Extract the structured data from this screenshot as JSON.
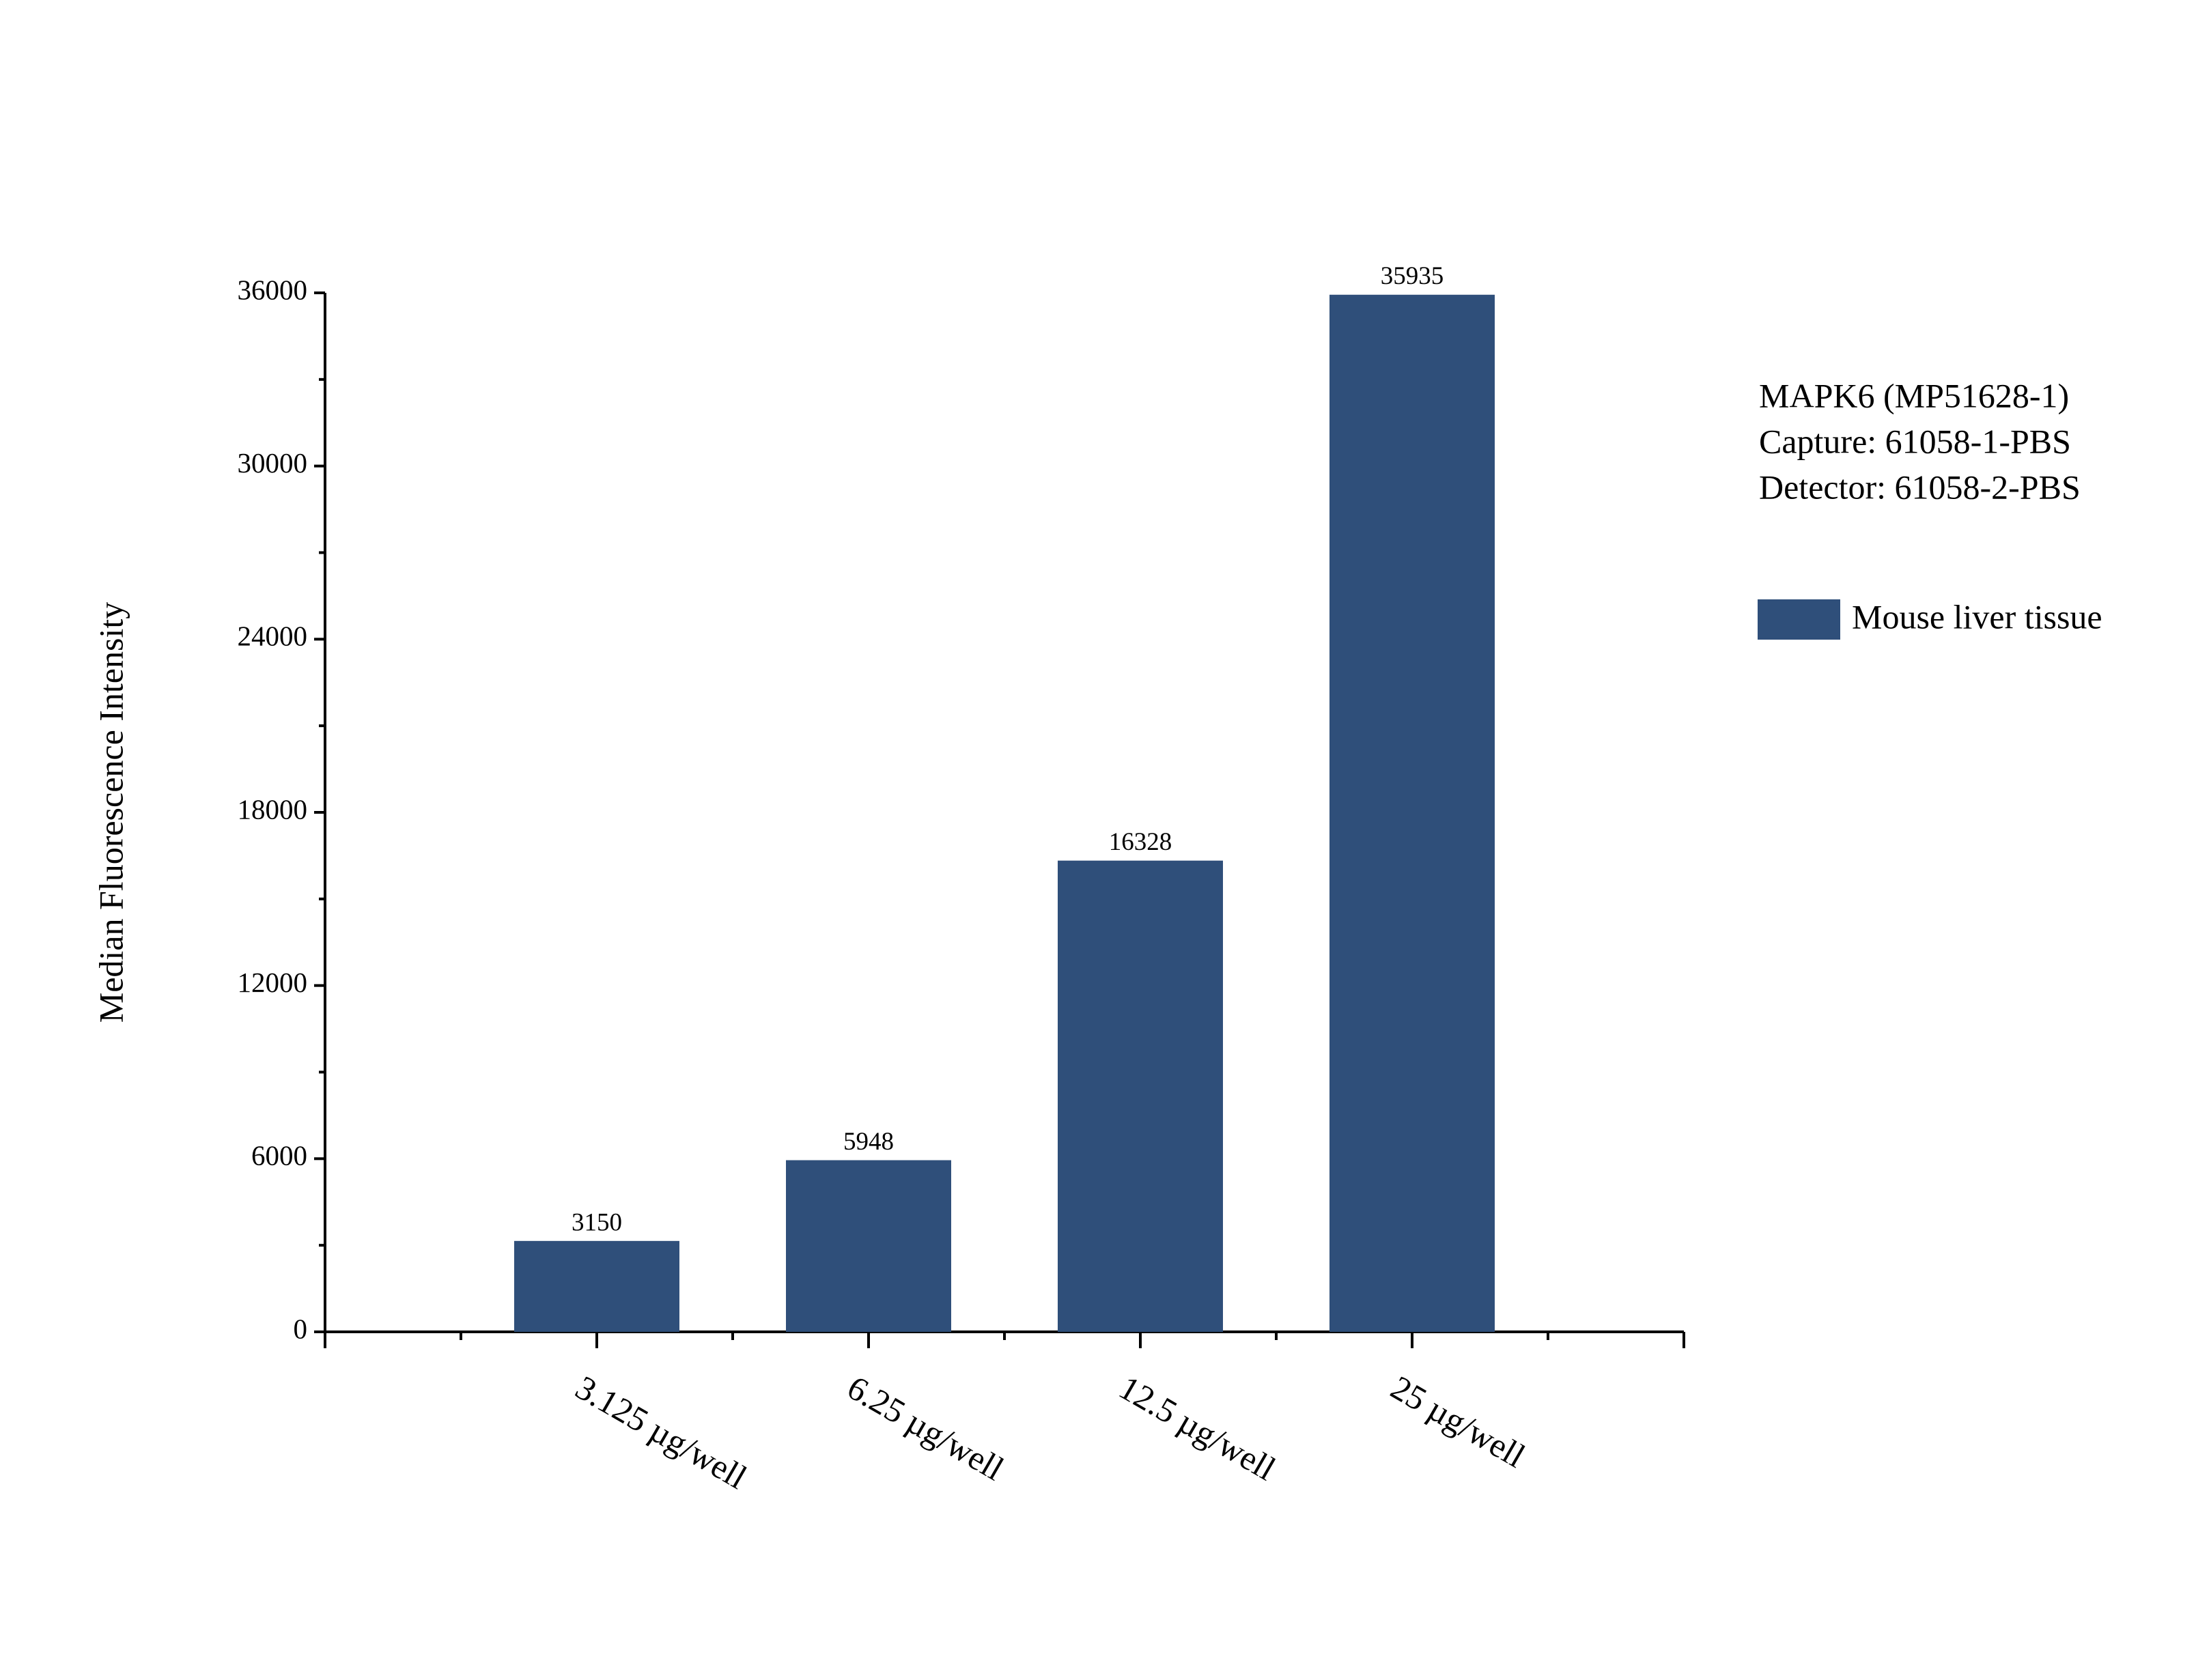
{
  "chart_data": {
    "type": "bar",
    "ylabel": "Median Fluorescence Intensity",
    "annotations": [
      "MAPK6 (MP51628-1)",
      "Capture: 61058-1-PBS",
      "Detector: 61058-2-PBS"
    ],
    "categories": [
      "3.125 µg/well",
      "6.25 µg/well",
      "12.5 µg/well",
      "25 µg/well"
    ],
    "series": [
      {
        "name": "Mouse liver tissue",
        "color": "#2f4f7a",
        "values": [
          3150,
          5948,
          16328,
          35935
        ]
      }
    ],
    "ylim": [
      0,
      36000
    ],
    "yticks": [
      0,
      6000,
      12000,
      18000,
      24000,
      30000,
      36000
    ],
    "legend": "right"
  }
}
